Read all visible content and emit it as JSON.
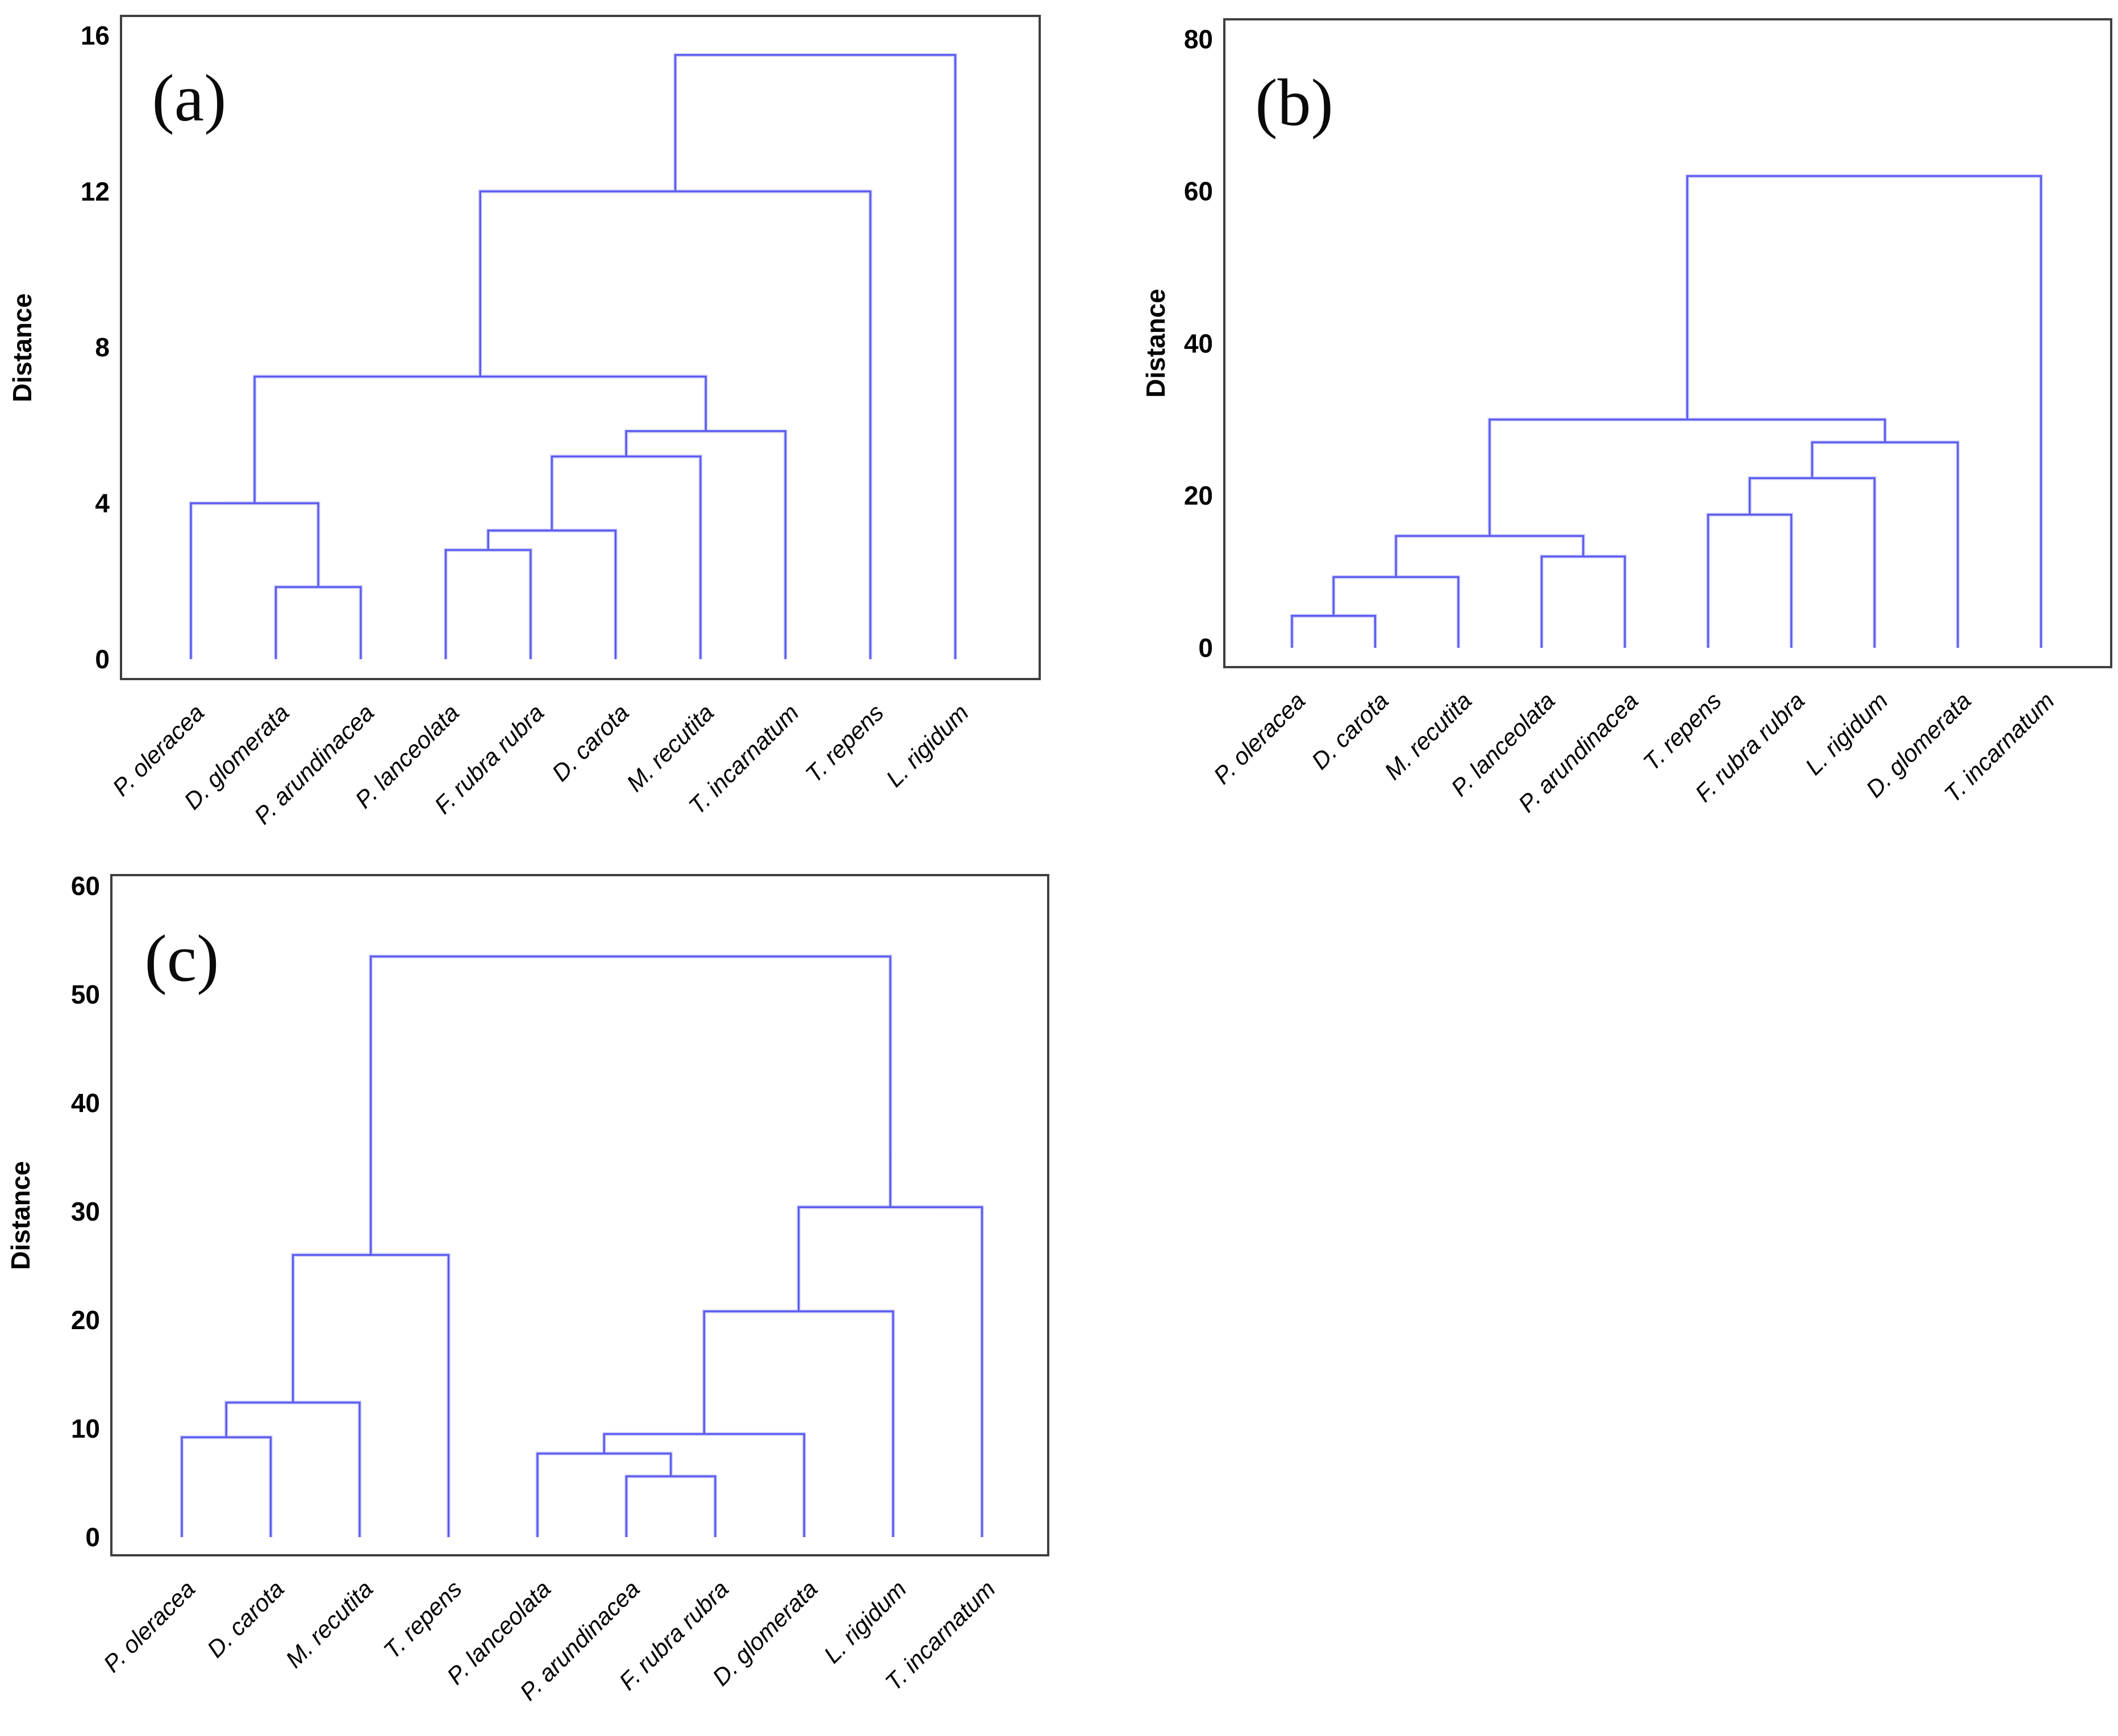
{
  "figure": {
    "background": "#ffffff",
    "line_color": "#5b5bf0",
    "line_halo_color": "#a9a9f9",
    "box_color": "#3f3f3f",
    "text_color": "#000000"
  },
  "chart_data": [
    {
      "type": "dendrogram",
      "panel_label": "(a)",
      "ylabel": "Distance",
      "yticks": [
        0,
        4,
        8,
        12,
        16
      ],
      "ylim": [
        0,
        16.5
      ],
      "legend": "none",
      "grid": false,
      "leaves": [
        "P. oleracea",
        "D. glomerata",
        "P. arundinacea",
        "P. lanceolata",
        "F. rubra rubra",
        "D. carota",
        "M. recutita",
        "T. incarnatum",
        "T. repens",
        "L. rigidum"
      ],
      "merges": [
        {
          "children": [
            1,
            2
          ],
          "height": 1.85
        },
        {
          "children": [
            0,
            10
          ],
          "height": 4.0
        },
        {
          "children": [
            3,
            4
          ],
          "height": 2.8
        },
        {
          "children": [
            12,
            5
          ],
          "height": 3.3
        },
        {
          "children": [
            13,
            6
          ],
          "height": 5.2
        },
        {
          "children": [
            14,
            7
          ],
          "height": 5.85
        },
        {
          "children": [
            11,
            15
          ],
          "height": 7.25
        },
        {
          "children": [
            16,
            8
          ],
          "height": 12.0
        },
        {
          "children": [
            17,
            9
          ],
          "height": 15.5
        }
      ]
    },
    {
      "type": "dendrogram",
      "panel_label": "(b)",
      "ylabel": "Distance",
      "yticks": [
        0,
        20,
        40,
        60,
        80
      ],
      "ylim": [
        0,
        82.5
      ],
      "legend": "none",
      "grid": false,
      "leaves": [
        "P. oleracea",
        "D. carota",
        "M. recutita",
        "P. lanceolata",
        "P. arundinacea",
        "T. repens",
        "F. rubra rubra",
        "L. rigidum",
        "D. glomerata",
        "T. incarnatum"
      ],
      "merges": [
        {
          "children": [
            0,
            1
          ],
          "height": 4.2
        },
        {
          "children": [
            10,
            2
          ],
          "height": 9.3
        },
        {
          "children": [
            3,
            4
          ],
          "height": 12.0
        },
        {
          "children": [
            11,
            12
          ],
          "height": 14.7
        },
        {
          "children": [
            5,
            6
          ],
          "height": 17.5
        },
        {
          "children": [
            14,
            7
          ],
          "height": 22.3
        },
        {
          "children": [
            15,
            8
          ],
          "height": 27.0
        },
        {
          "children": [
            13,
            16
          ],
          "height": 30.0
        },
        {
          "children": [
            17,
            9
          ],
          "height": 62.0
        }
      ]
    },
    {
      "type": "dendrogram",
      "panel_label": "(c)",
      "ylabel": "Distance",
      "yticks": [
        0,
        10,
        20,
        30,
        40,
        50,
        60
      ],
      "ylim": [
        0,
        61
      ],
      "legend": "none",
      "grid": false,
      "leaves": [
        "P. oleracea",
        "D. carota",
        "M. recutita",
        "T. repens",
        "P. lanceolata",
        "P. arundinacea",
        "F. rubra rubra",
        "D. glomerata",
        "L. rigidum",
        "T. incarnatum"
      ],
      "merges": [
        {
          "children": [
            0,
            1
          ],
          "height": 9.2
        },
        {
          "children": [
            10,
            2
          ],
          "height": 12.4
        },
        {
          "children": [
            11,
            3
          ],
          "height": 26.0
        },
        {
          "children": [
            5,
            6
          ],
          "height": 5.6
        },
        {
          "children": [
            4,
            13
          ],
          "height": 7.7
        },
        {
          "children": [
            14,
            7
          ],
          "height": 9.5
        },
        {
          "children": [
            15,
            8
          ],
          "height": 20.8
        },
        {
          "children": [
            16,
            9
          ],
          "height": 30.4
        },
        {
          "children": [
            12,
            17
          ],
          "height": 53.5
        }
      ]
    }
  ]
}
